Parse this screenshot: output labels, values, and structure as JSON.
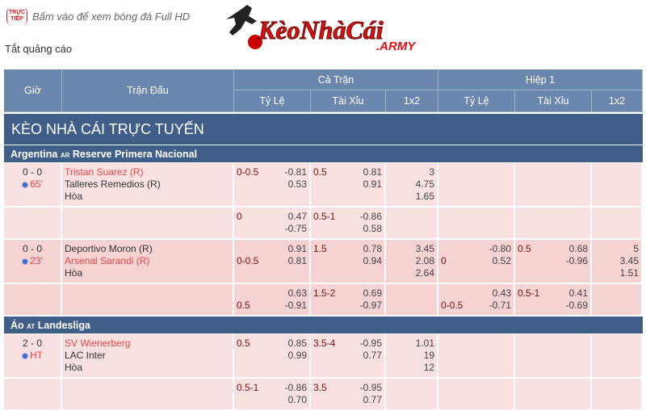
{
  "header": {
    "live_badge": "TRỰC TIẾP",
    "promo_text": "Bấm vào để xem bóng đá Full HD",
    "logo_text": "KèoNhàCái.ARMY",
    "ad_toggle": "Tắt quảng cáo"
  },
  "colors": {
    "header": "#6b87ae",
    "bar": "#3f5f88",
    "row_light": "#f9e1e1",
    "row_dark": "#f6d3d3",
    "favorite": "#e84545",
    "handicap": "#7a1010"
  },
  "table": {
    "cols": {
      "time": "Giờ",
      "match": "Trận Đấu",
      "full": "Cả Trận",
      "half": "Hiệp 1",
      "hdp": "Tỷ Lệ",
      "ou": "Tài Xỉu",
      "x12": "1x2"
    },
    "title": "KÈO NHÀ CÁI TRỰC TUYẾN",
    "leagues": [
      {
        "country": "Argentina",
        "code": "AR",
        "name": "Reserve Primera Nacional",
        "matches": [
          {
            "score": "0 - 0",
            "minute": "65'",
            "home": "Tristan Suarez (R)",
            "away": "Talleres Remedios (R)",
            "draw": "Hòa",
            "favorite": "home",
            "shade": "light",
            "rows": [
              [
                {
                  "h": "0-0.5",
                  "hr": 0,
                  "o": [
                    "-0.81",
                    "0.53"
                  ]
                },
                {
                  "h": "0.5",
                  "hr": 0,
                  "o": [
                    "0.81",
                    "0.91"
                  ]
                },
                {
                  "o": [
                    "3",
                    "4.75",
                    "1.65"
                  ]
                },
                {
                  "o": []
                },
                {
                  "o": []
                },
                {
                  "o": []
                }
              ],
              [
                {
                  "h": "0",
                  "hr": 0,
                  "o": [
                    "0.47",
                    "-0.75"
                  ]
                },
                {
                  "h": "0.5-1",
                  "hr": 0,
                  "o": [
                    "-0.86",
                    "0.58"
                  ]
                },
                {
                  "o": []
                },
                {
                  "o": []
                },
                {
                  "o": []
                },
                {
                  "o": []
                }
              ]
            ]
          },
          {
            "score": "0 - 0",
            "minute": "23'",
            "home": "Deportivo Moron (R)",
            "away": "Arsenal Sarandi (R)",
            "draw": "Hòa",
            "favorite": "away",
            "shade": "dark",
            "rows": [
              [
                {
                  "h": "0-0.5",
                  "hr": 1,
                  "o": [
                    "0.91",
                    "0.81"
                  ]
                },
                {
                  "h": "1.5",
                  "hr": 0,
                  "o": [
                    "0.78",
                    "0.94"
                  ]
                },
                {
                  "o": [
                    "3.45",
                    "2.08",
                    "2.64"
                  ]
                },
                {
                  "h": "0",
                  "hr": 1,
                  "o": [
                    "-0.80",
                    "0.52"
                  ]
                },
                {
                  "h": "0.5",
                  "hr": 0,
                  "o": [
                    "0.68",
                    "-0.96"
                  ]
                },
                {
                  "o": [
                    "5",
                    "3.45",
                    "1.51"
                  ]
                }
              ],
              [
                {
                  "h": "0.5",
                  "hr": 1,
                  "o": [
                    "0.63",
                    "-0.91"
                  ]
                },
                {
                  "h": "1.5-2",
                  "hr": 0,
                  "o": [
                    "0.69",
                    "-0.97"
                  ]
                },
                {
                  "o": []
                },
                {
                  "h": "0-0.5",
                  "hr": 1,
                  "o": [
                    "0.43",
                    "-0.71"
                  ]
                },
                {
                  "h": "0.5-1",
                  "hr": 0,
                  "o": [
                    "0.41",
                    "-0.69"
                  ]
                },
                {
                  "o": []
                }
              ]
            ]
          }
        ]
      },
      {
        "country": "Áo",
        "code": "AT",
        "name": "Landesliga",
        "matches": [
          {
            "score": "2 - 0",
            "minute": "HT",
            "home": "SV Wienerberg",
            "away": "LAC Inter",
            "draw": "Hòa",
            "favorite": "home",
            "shade": "light",
            "rows": [
              [
                {
                  "h": "0.5",
                  "hr": 0,
                  "o": [
                    "0.85",
                    "0.99"
                  ]
                },
                {
                  "h": "3.5-4",
                  "hr": 0,
                  "o": [
                    "-0.95",
                    "0.77"
                  ]
                },
                {
                  "o": [
                    "1.01",
                    "19",
                    "12"
                  ]
                },
                {
                  "o": []
                },
                {
                  "o": []
                },
                {
                  "o": []
                }
              ],
              [
                {
                  "h": "0.5-1",
                  "hr": 0,
                  "o": [
                    "-0.86",
                    "0.70"
                  ]
                },
                {
                  "h": "3.5",
                  "hr": 0,
                  "o": [
                    "-0.95",
                    "0.77"
                  ]
                },
                {
                  "o": []
                },
                {
                  "o": []
                },
                {
                  "o": []
                },
                {
                  "o": []
                }
              ]
            ]
          }
        ]
      }
    ]
  }
}
